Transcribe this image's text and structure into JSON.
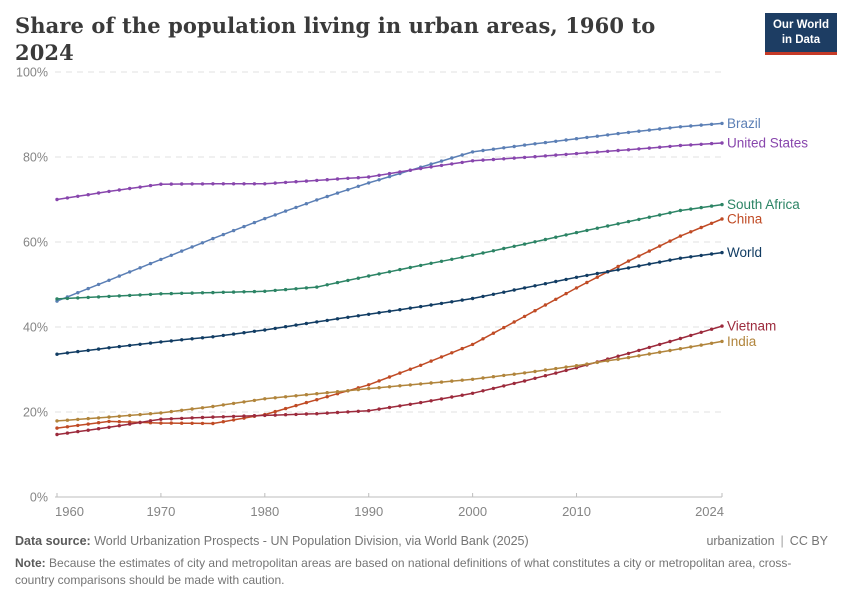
{
  "header": {
    "title": "Share of the population living in urban areas, 1960 to 2024",
    "logo": {
      "line1": "Our World",
      "line2": "in Data",
      "bg_color": "#1d3d63",
      "accent_color": "#c53a27"
    }
  },
  "footer": {
    "datasource_label": "Data source:",
    "datasource_text": "World Urbanization Prospects - UN Population Division, via World Bank (2025)",
    "topic": "urbanization",
    "separator": "|",
    "license": "CC BY",
    "note_label": "Note:",
    "note_text": "Because the estimates of city and metropolitan areas are based on national definitions of what constitutes a city or metropolitan area, cross-country comparisons should be made with caution."
  },
  "chart_data": {
    "type": "line",
    "title": "Share of the population living in urban areas, 1960 to 2024",
    "xlabel": "",
    "ylabel": "",
    "unit": "%",
    "ylim": [
      0,
      100
    ],
    "xlim": [
      1960,
      2024
    ],
    "grid": "dashed-horizontal",
    "legend_position": "end-of-line-labels",
    "markers": "yearly-dots",
    "y_ticks": [
      {
        "value": 0,
        "label": "0%"
      },
      {
        "value": 20,
        "label": "20%"
      },
      {
        "value": 40,
        "label": "40%"
      },
      {
        "value": 60,
        "label": "60%"
      },
      {
        "value": 80,
        "label": "80%"
      },
      {
        "value": 100,
        "label": "100%"
      }
    ],
    "x_ticks": [
      {
        "value": 1960,
        "label": "1960"
      },
      {
        "value": 1970,
        "label": "1970"
      },
      {
        "value": 1980,
        "label": "1980"
      },
      {
        "value": 1990,
        "label": "1990"
      },
      {
        "value": 2000,
        "label": "2000"
      },
      {
        "value": 2010,
        "label": "2010"
      },
      {
        "value": 2024,
        "label": "2024"
      }
    ],
    "x": [
      1960,
      1965,
      1970,
      1975,
      1980,
      1985,
      1990,
      1995,
      2000,
      2005,
      2010,
      2015,
      2020,
      2024
    ],
    "series": [
      {
        "name": "Brazil",
        "color": "#5b7fb5",
        "values": [
          46.1,
          51.0,
          55.9,
          60.8,
          65.5,
          69.9,
          73.9,
          77.6,
          81.2,
          82.8,
          84.3,
          85.8,
          87.1,
          87.9
        ]
      },
      {
        "name": "United States",
        "color": "#8846ad",
        "values": [
          70.0,
          71.9,
          73.6,
          73.7,
          73.7,
          74.5,
          75.3,
          77.3,
          79.1,
          79.9,
          80.8,
          81.7,
          82.7,
          83.3
        ]
      },
      {
        "name": "South Africa",
        "color": "#2c8465",
        "values": [
          46.6,
          47.2,
          47.8,
          48.1,
          48.4,
          49.4,
          52.0,
          54.5,
          56.9,
          59.5,
          62.2,
          64.8,
          67.4,
          68.8
        ]
      },
      {
        "name": "China",
        "color": "#c04b25",
        "values": [
          16.2,
          17.8,
          17.4,
          17.3,
          19.4,
          22.9,
          26.4,
          31.0,
          35.9,
          42.5,
          49.2,
          55.5,
          61.4,
          65.4
        ]
      },
      {
        "name": "World",
        "color": "#113c63",
        "values": [
          33.6,
          35.1,
          36.5,
          37.7,
          39.3,
          41.2,
          43.0,
          44.8,
          46.7,
          49.2,
          51.7,
          53.9,
          56.2,
          57.5
        ]
      },
      {
        "name": "Vietnam",
        "color": "#9c2a3c",
        "values": [
          14.7,
          16.4,
          18.3,
          18.8,
          19.2,
          19.6,
          20.3,
          22.2,
          24.4,
          27.3,
          30.4,
          33.8,
          37.3,
          40.2
        ]
      },
      {
        "name": "India",
        "color": "#b1853c",
        "values": [
          17.9,
          18.8,
          19.8,
          21.3,
          23.1,
          24.3,
          25.5,
          26.6,
          27.7,
          29.2,
          30.9,
          32.8,
          34.9,
          36.6
        ]
      }
    ],
    "colors": {
      "gridline": "#e0e0e0",
      "axis": "#bdbdbd",
      "tick_label": "#858585"
    }
  }
}
